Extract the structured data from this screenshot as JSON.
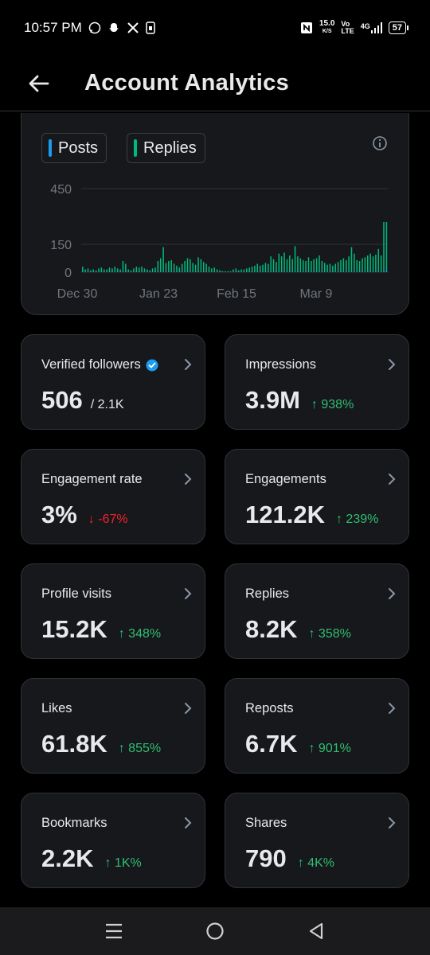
{
  "status_bar": {
    "time": "10:57 PM",
    "net_speed": "15.0",
    "net_unit": "K/S",
    "volte_top": "Vo",
    "volte_bottom": "LTE",
    "network": "4G",
    "battery": "57"
  },
  "header": {
    "title": "Account Analytics"
  },
  "chart": {
    "legend": [
      {
        "label": "Posts",
        "color": "#1d9bf0"
      },
      {
        "label": "Replies",
        "color": "#00ba7c"
      }
    ]
  },
  "chart_data": {
    "type": "bar",
    "title": "",
    "xlabel": "",
    "ylabel": "",
    "ylim": [
      0,
      450
    ],
    "y_ticks": [
      "450",
      "150",
      "0"
    ],
    "x_ticks": [
      "Dec 30",
      "Jan 23",
      "Feb 15",
      "Mar 9"
    ],
    "series": [
      {
        "name": "Replies",
        "color": "#00ba7c",
        "values": [
          30,
          15,
          20,
          10,
          15,
          10,
          20,
          25,
          15,
          15,
          25,
          20,
          30,
          20,
          15,
          60,
          45,
          15,
          10,
          20,
          30,
          25,
          30,
          20,
          15,
          10,
          20,
          25,
          60,
          75,
          135,
          50,
          60,
          65,
          45,
          35,
          25,
          45,
          60,
          75,
          70,
          50,
          40,
          80,
          70,
          55,
          45,
          30,
          20,
          25,
          15,
          10,
          5,
          5,
          5,
          5,
          15,
          20,
          10,
          15,
          15,
          20,
          25,
          30,
          35,
          45,
          35,
          40,
          50,
          45,
          85,
          70,
          55,
          100,
          85,
          105,
          70,
          90,
          70,
          140,
          85,
          75,
          65,
          60,
          80,
          60,
          70,
          75,
          90,
          60,
          50,
          40,
          45,
          35,
          45,
          55,
          65,
          75,
          65,
          85,
          135,
          100,
          65,
          60,
          75,
          80,
          90,
          100,
          85,
          95,
          125,
          90,
          270,
          270
        ]
      },
      {
        "name": "Posts",
        "color": "#1d9bf0",
        "values": [
          5,
          0,
          0,
          0,
          5,
          0,
          0,
          0,
          5,
          0,
          0,
          5,
          0,
          0,
          5,
          0,
          5,
          0,
          0,
          0,
          5,
          0,
          0,
          0,
          5,
          0,
          0,
          5,
          0,
          5,
          0,
          0,
          0,
          5,
          0,
          0,
          5,
          0,
          0,
          5,
          0,
          0,
          0,
          5,
          0,
          0,
          5,
          0,
          0,
          0,
          0,
          0,
          5,
          0,
          0,
          0,
          0,
          0,
          5,
          0,
          0,
          0,
          5,
          0,
          0,
          5,
          0,
          0,
          5,
          0,
          0,
          0,
          5,
          0,
          5,
          0,
          0,
          5,
          0,
          0,
          5,
          0,
          0,
          0,
          5,
          0,
          5,
          0,
          0,
          5,
          0,
          0,
          0,
          5,
          0,
          0,
          5,
          0,
          5,
          0,
          0,
          0,
          5,
          0,
          5,
          0,
          0,
          5,
          0,
          0,
          5,
          0,
          5,
          10
        ]
      }
    ],
    "grid": true,
    "legend_position": "top-left"
  },
  "stats": [
    {
      "label": "Verified followers",
      "value": "506",
      "sub": "/ 2.1K",
      "delta": "",
      "trend": "none",
      "verified": true
    },
    {
      "label": "Impressions",
      "value": "3.9M",
      "delta": "↑ 938%",
      "trend": "up"
    },
    {
      "label": "Engagement rate",
      "value": "3%",
      "delta": "↓ -67%",
      "trend": "down"
    },
    {
      "label": "Engagements",
      "value": "121.2K",
      "delta": "↑ 239%",
      "trend": "up"
    },
    {
      "label": "Profile visits",
      "value": "15.2K",
      "delta": "↑ 348%",
      "trend": "up"
    },
    {
      "label": "Replies",
      "value": "8.2K",
      "delta": "↑ 358%",
      "trend": "up"
    },
    {
      "label": "Likes",
      "value": "61.8K",
      "delta": "↑ 855%",
      "trend": "up"
    },
    {
      "label": "Reposts",
      "value": "6.7K",
      "delta": "↑ 901%",
      "trend": "up"
    },
    {
      "label": "Bookmarks",
      "value": "2.2K",
      "delta": "↑ 1K%",
      "trend": "up"
    },
    {
      "label": "Shares",
      "value": "790",
      "delta": "↑ 4K%",
      "trend": "up"
    }
  ],
  "icons": {
    "back": "arrow-left-icon",
    "info": "info-icon",
    "chevron": "chevron-right-icon",
    "verified": "verified-badge-icon",
    "nav": [
      "menu-icon",
      "home-circle-icon",
      "back-triangle-icon"
    ]
  }
}
